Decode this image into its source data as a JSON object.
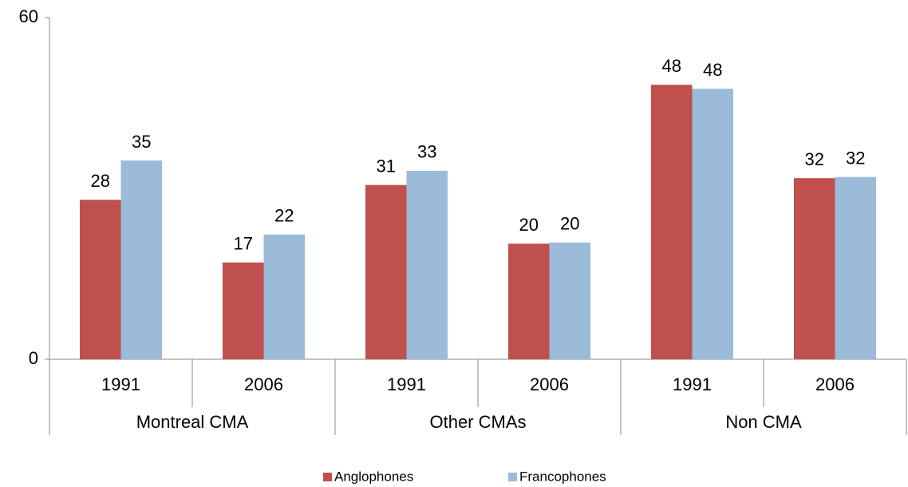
{
  "chart_data": {
    "type": "bar",
    "categories": [
      "1991",
      "2006",
      "1991",
      "2006",
      "1991",
      "2006"
    ],
    "group_labels": [
      "Montreal CMA",
      "Other CMAs",
      "Non CMA"
    ],
    "series": [
      {
        "name": "Anglophones",
        "color": "#c0504d",
        "values": [
          28.0,
          17.0,
          30.6,
          20.3,
          48.2,
          31.8
        ],
        "value_labels": [
          "28",
          "17",
          "31",
          "20",
          "48",
          "32"
        ]
      },
      {
        "name": "Francophones",
        "color": "#9bbbd9",
        "values": [
          34.9,
          21.9,
          33.1,
          20.5,
          47.5,
          32.0
        ],
        "value_labels": [
          "35",
          "22",
          "33",
          "20",
          "48",
          "32"
        ]
      }
    ],
    "ylim": [
      0,
      60
    ],
    "yticks": [
      0,
      60
    ],
    "legend": "bottom"
  }
}
